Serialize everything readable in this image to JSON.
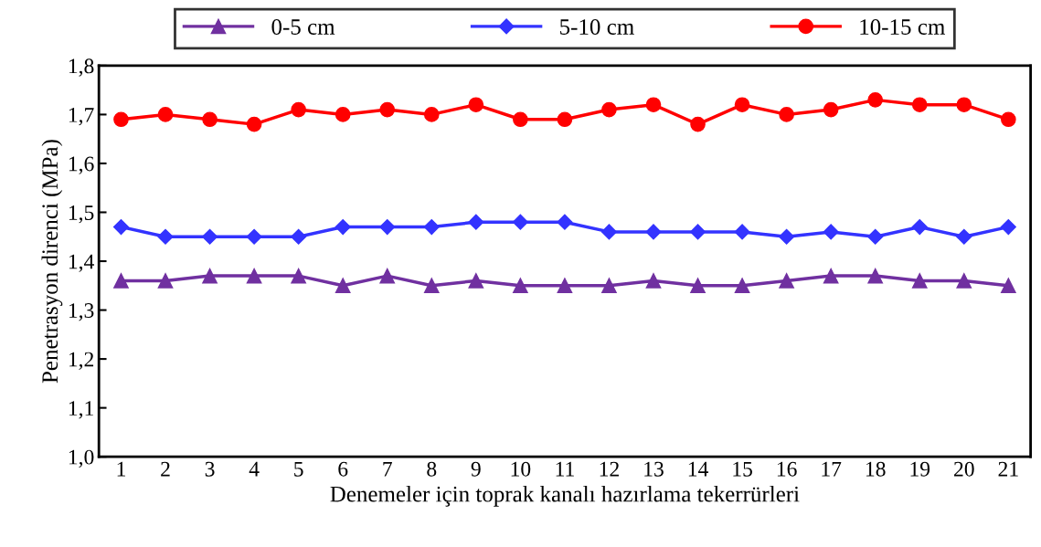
{
  "chart_data": {
    "type": "line",
    "xlabel": "Denemeler için toprak kanalı hazırlama tekerrürleri",
    "ylabel": "Penetrasyon direnci (MPa)",
    "categories": [
      "1",
      "2",
      "3",
      "4",
      "5",
      "6",
      "7",
      "8",
      "9",
      "10",
      "11",
      "12",
      "13",
      "14",
      "15",
      "16",
      "17",
      "18",
      "19",
      "20",
      "21"
    ],
    "ylim": [
      1.0,
      1.8
    ],
    "yticks": [
      {
        "value": 1.0,
        "label": "1,0"
      },
      {
        "value": 1.1,
        "label": "1,1"
      },
      {
        "value": 1.2,
        "label": "1,2"
      },
      {
        "value": 1.3,
        "label": "1,3"
      },
      {
        "value": 1.4,
        "label": "1,4"
      },
      {
        "value": 1.5,
        "label": "1,5"
      },
      {
        "value": 1.6,
        "label": "1,6"
      },
      {
        "value": 1.7,
        "label": "1,7"
      },
      {
        "value": 1.8,
        "label": "1,8"
      }
    ],
    "grid": false,
    "legend": "top",
    "line_style": "solid",
    "series": [
      {
        "name": "0-5 cm",
        "color": "#7030a0",
        "marker": "triangle",
        "values": [
          1.36,
          1.36,
          1.37,
          1.37,
          1.37,
          1.35,
          1.37,
          1.35,
          1.36,
          1.35,
          1.35,
          1.35,
          1.36,
          1.35,
          1.35,
          1.36,
          1.37,
          1.37,
          1.36,
          1.36,
          1.35
        ]
      },
      {
        "name": "5-10 cm",
        "color": "#3333ff",
        "marker": "diamond",
        "values": [
          1.47,
          1.45,
          1.45,
          1.45,
          1.45,
          1.47,
          1.47,
          1.47,
          1.48,
          1.48,
          1.48,
          1.46,
          1.46,
          1.46,
          1.46,
          1.45,
          1.46,
          1.45,
          1.47,
          1.45,
          1.47
        ]
      },
      {
        "name": "10-15 cm",
        "color": "#ff0000",
        "marker": "circle",
        "values": [
          1.69,
          1.7,
          1.69,
          1.68,
          1.71,
          1.7,
          1.71,
          1.7,
          1.72,
          1.69,
          1.69,
          1.71,
          1.72,
          1.68,
          1.72,
          1.7,
          1.71,
          1.73,
          1.72,
          1.72,
          1.69
        ]
      }
    ]
  }
}
